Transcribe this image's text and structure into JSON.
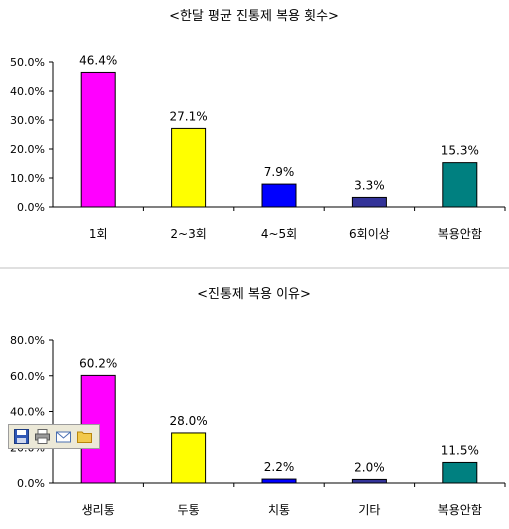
{
  "chart_data": [
    {
      "type": "bar",
      "title": "<한달 평균 진통제 복용 횟수>",
      "categories": [
        "1회",
        "2~3회",
        "4~5회",
        "6회이상",
        "복용안함"
      ],
      "values": [
        46.4,
        27.1,
        7.9,
        3.3,
        15.3
      ],
      "data_labels": [
        "46.4%",
        "27.1%",
        "7.9%",
        "3.3%",
        "15.3%"
      ],
      "colors": [
        "#ff00ff",
        "#ffff00",
        "#0000ff",
        "#333399",
        "#008080"
      ],
      "ylim": [
        0,
        50
      ],
      "yticks": [
        0,
        10,
        20,
        30,
        40,
        50
      ],
      "ytick_labels": [
        "0.0%",
        "10.0%",
        "20.0%",
        "30.0%",
        "40.0%",
        "50.0%"
      ],
      "xlabel": "",
      "ylabel": "",
      "grid": false,
      "legend": "none"
    },
    {
      "type": "bar",
      "title": "<진통제 복용 이유>",
      "categories": [
        "생리통",
        "두통",
        "치통",
        "기타",
        "복용안함"
      ],
      "values": [
        60.2,
        28.0,
        2.2,
        2.0,
        11.5
      ],
      "data_labels": [
        "60.2%",
        "28.0%",
        "2.2%",
        "2.0%",
        "11.5%"
      ],
      "colors": [
        "#ff00ff",
        "#ffff00",
        "#0000ff",
        "#333399",
        "#008080"
      ],
      "ylim": [
        0,
        80
      ],
      "yticks": [
        0,
        20,
        40,
        60,
        80
      ],
      "ytick_labels": [
        "0.0%",
        "20.0%",
        "40.0%",
        "60.0%",
        "80.0%"
      ],
      "xlabel": "",
      "ylabel": "",
      "grid": false,
      "legend": "none"
    }
  ],
  "image_toolbar": {
    "icons": [
      "save-icon",
      "print-icon",
      "email-icon",
      "folder-icon"
    ]
  }
}
